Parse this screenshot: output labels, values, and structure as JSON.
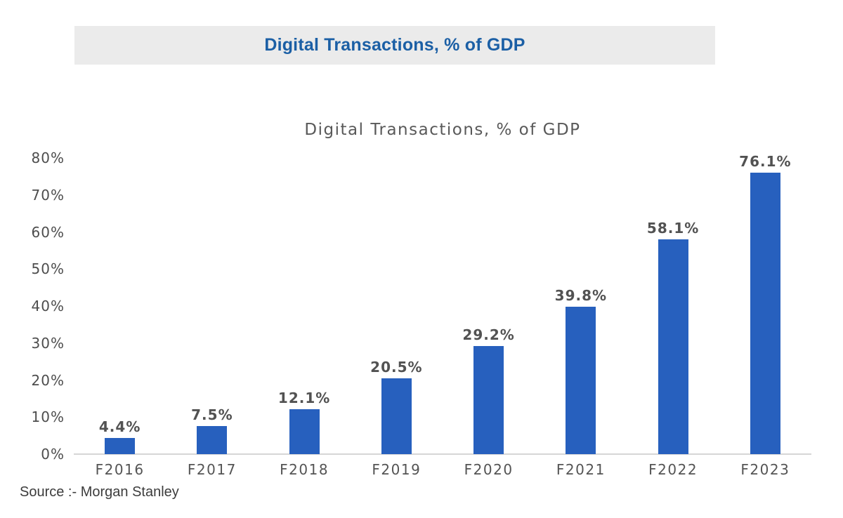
{
  "header": {
    "title": "Digital Transactions, % of GDP",
    "background": "#ebebeb",
    "text_color": "#1b5fa5"
  },
  "chart_data": {
    "type": "bar",
    "title": "Digital Transactions, % of GDP",
    "categories": [
      "F2016",
      "F2017",
      "F2018",
      "F2019",
      "F2020",
      "F2021",
      "F2022",
      "F2023"
    ],
    "values": [
      4.4,
      7.5,
      12.1,
      20.5,
      29.2,
      39.8,
      58.1,
      76.1
    ],
    "value_labels": [
      "4.4%",
      "7.5%",
      "12.1%",
      "20.5%",
      "29.2%",
      "39.8%",
      "58.1%",
      "76.1%"
    ],
    "xlabel": "",
    "ylabel": "",
    "ylim": [
      0,
      80
    ],
    "ytick_step": 10,
    "ytick_labels": [
      "0%",
      "10%",
      "20%",
      "30%",
      "40%",
      "50%",
      "60%",
      "70%",
      "80%"
    ],
    "grid": false,
    "legend": "none",
    "bar_color": "#2760be",
    "axis_line_color": "#d6d6d6"
  },
  "footer": {
    "source": "Source :- Morgan Stanley"
  }
}
